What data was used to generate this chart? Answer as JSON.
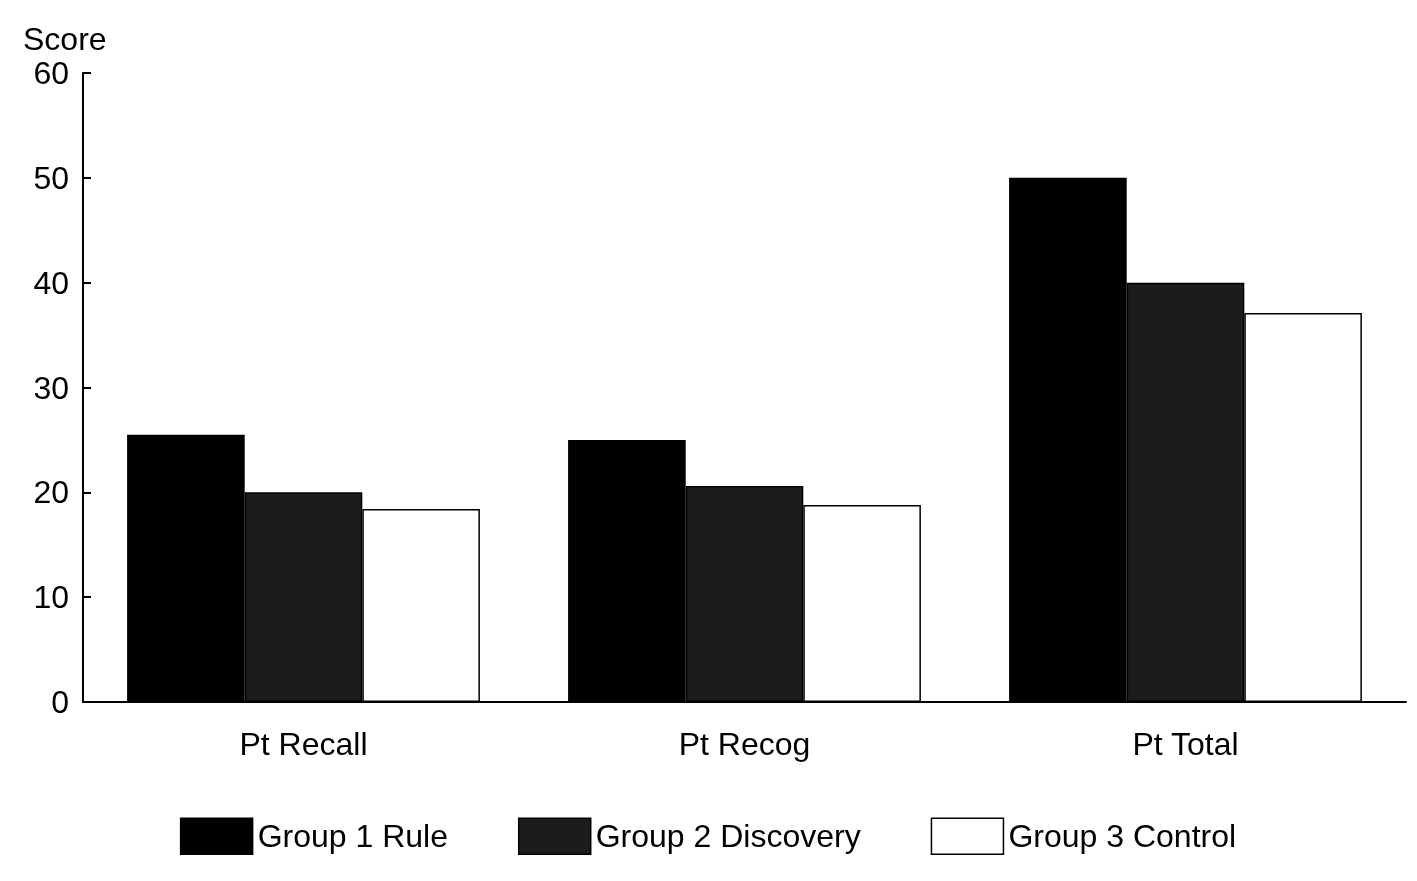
{
  "chart_data": {
    "type": "bar",
    "ylabel": "Score",
    "categories": [
      "Pt Recall",
      "Pt Recog",
      "Pt Total"
    ],
    "series": [
      {
        "name": "Group 1 Rule",
        "color": "#000000",
        "values": [
          25.5,
          25,
          50
        ]
      },
      {
        "name": "Group 2 Discovery",
        "color": "#1c1c1c",
        "values": [
          20,
          20.6,
          40
        ]
      },
      {
        "name": "Group 3 Control",
        "color": "#ffffff",
        "values": [
          18.4,
          18.8,
          37.1
        ]
      }
    ],
    "ylim": [
      0,
      60
    ],
    "yticks": [
      0,
      10,
      20,
      30,
      40,
      50,
      60
    ],
    "grid": false,
    "legend": "bottom"
  }
}
